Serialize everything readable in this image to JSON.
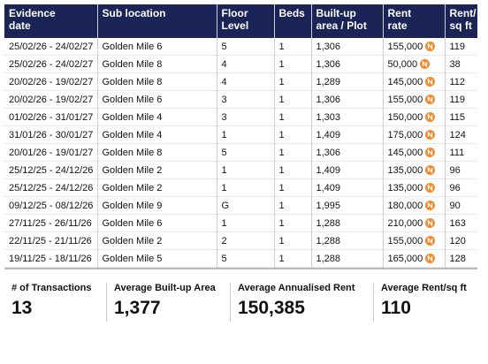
{
  "table": {
    "headers": [
      [
        "Evidence",
        "date"
      ],
      [
        "Sub location"
      ],
      [
        "Floor",
        "Level"
      ],
      [
        "Beds"
      ],
      [
        "Built-up",
        "area / Plot"
      ],
      [
        "Rent",
        "rate"
      ],
      [
        "Rent/",
        "sq ft"
      ]
    ],
    "rows": [
      [
        "25/02/26 - 24/02/27",
        "Golden Mile 6",
        "5",
        "1",
        "1,306",
        "155,000",
        "119"
      ],
      [
        "25/02/26 - 24/02/27",
        "Golden Mile 8",
        "4",
        "1",
        "1,306",
        "50,000",
        "38"
      ],
      [
        "20/02/26 - 19/02/27",
        "Golden Mile 8",
        "4",
        "1",
        "1,289",
        "145,000",
        "112"
      ],
      [
        "20/02/26 - 19/02/27",
        "Golden Mile 6",
        "3",
        "1",
        "1,306",
        "155,000",
        "119"
      ],
      [
        "01/02/26 - 31/01/27",
        "Golden Mile 4",
        "3",
        "1",
        "1,303",
        "150,000",
        "115"
      ],
      [
        "31/01/26 - 30/01/27",
        "Golden Mile 4",
        "1",
        "1",
        "1,409",
        "175,000",
        "124"
      ],
      [
        "20/01/26 - 19/01/27",
        "Golden Mile 8",
        "5",
        "1",
        "1,306",
        "145,000",
        "111"
      ],
      [
        "25/12/25 - 24/12/26",
        "Golden Mile 2",
        "1",
        "1",
        "1,409",
        "135,000",
        "96"
      ],
      [
        "25/12/25 - 24/12/26",
        "Golden Mile 2",
        "1",
        "1",
        "1,409",
        "135,000",
        "96"
      ],
      [
        "09/12/25 - 08/12/26",
        "Golden Mile 9",
        "G",
        "1",
        "1,995",
        "180,000",
        "90"
      ],
      [
        "27/11/25 - 26/11/26",
        "Golden Mile 6",
        "1",
        "1",
        "1,288",
        "210,000",
        "163"
      ],
      [
        "22/11/25 - 21/11/26",
        "Golden Mile 2",
        "2",
        "1",
        "1,288",
        "155,000",
        "120"
      ],
      [
        "19/11/25 - 18/11/26",
        "Golden Mile 5",
        "5",
        "1",
        "1,288",
        "165,000",
        "128"
      ]
    ]
  },
  "summary": [
    {
      "label": "# of Transactions",
      "value": "13"
    },
    {
      "label": "Average Built-up Area",
      "value": "1,377"
    },
    {
      "label": "Average Annualised Rent",
      "value": "150,385"
    },
    {
      "label": "Average Rent/sq ft",
      "value": "110"
    }
  ]
}
